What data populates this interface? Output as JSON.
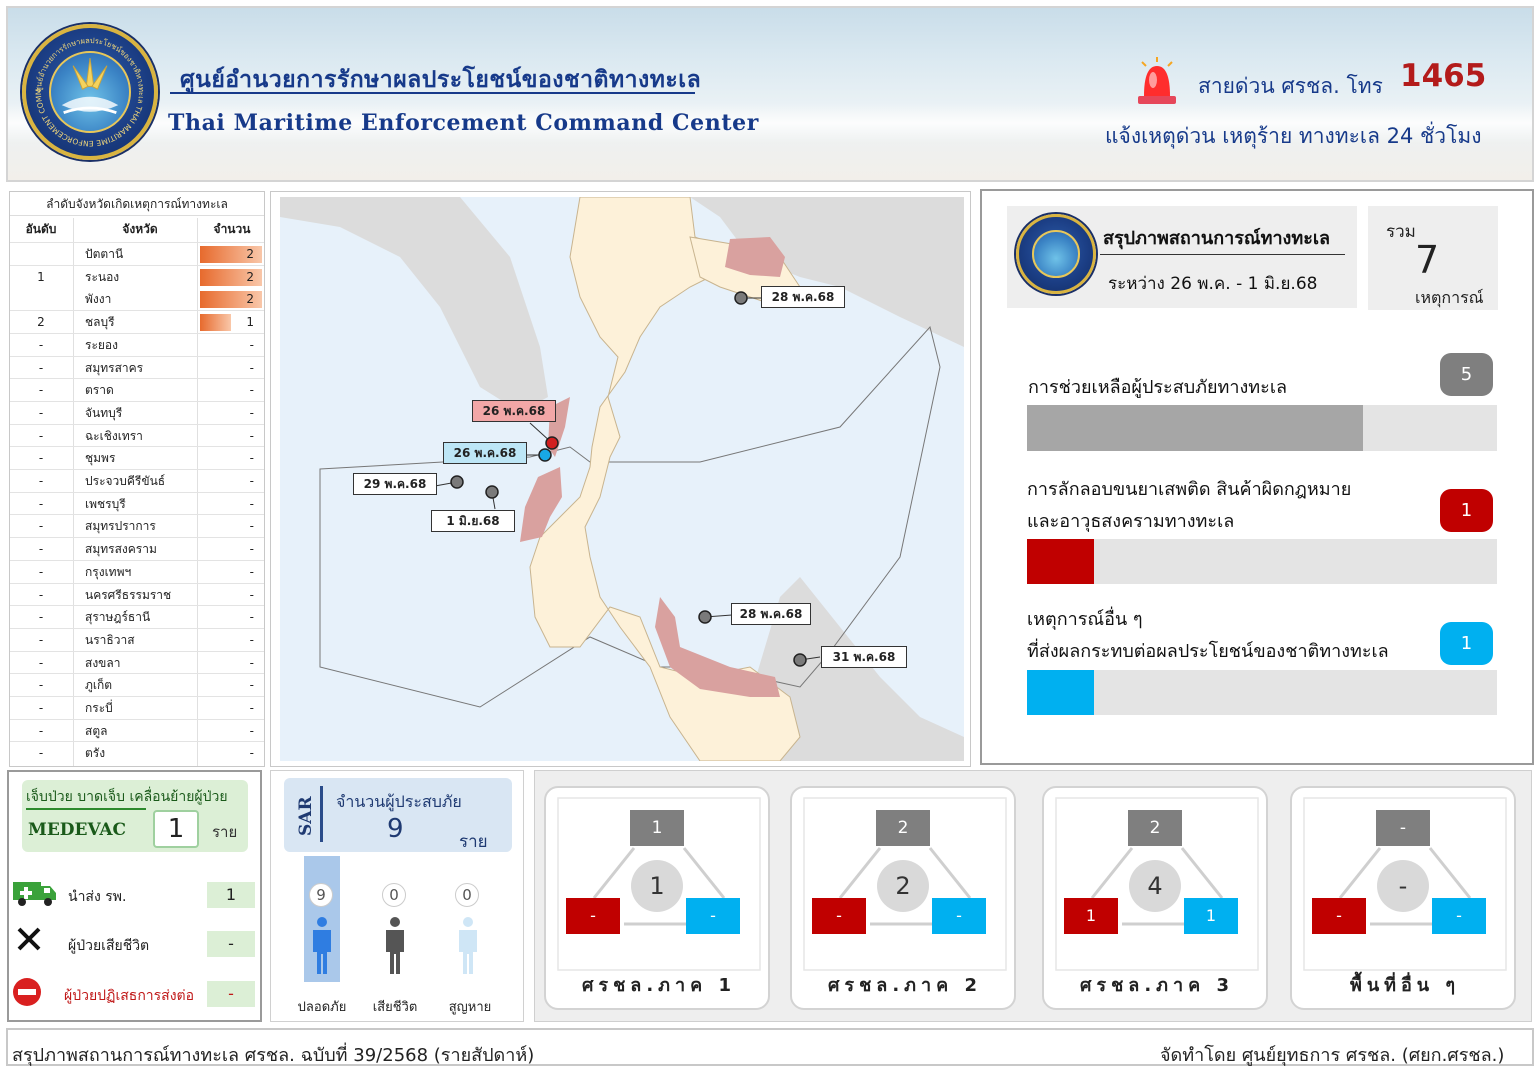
{
  "header": {
    "title_th": "ศูนย์อำนวยการรักษาผลประโยชน์ของชาติทางทะเล",
    "title_en": "Thai Maritime Enforcement Command Center",
    "logo_text": "ศูนย์อำนวยการรักษาผลประโยชน์ของชาติทางทะเล THAI MARITIME ENFORCEMENT COMMAND CENTER",
    "hotline_label": "สายด่วน ศรชล. โทร",
    "hotline_number": "1465",
    "hotline_sub": "แจ้งเหตุด่วน เหตุร้าย ทางทะเล 24 ชั่วโมง"
  },
  "ranking": {
    "title": "ลำดับจังหวัดเกิดเหตุการณ์ทางทะเล",
    "col_rank": "อันดับ",
    "col_province": "จังหวัด",
    "col_count": "จำนวน",
    "max_count": 2,
    "rows": [
      {
        "rank": "",
        "province": "ปัตตานี",
        "count": "2",
        "bar": 2
      },
      {
        "rank": "1",
        "province": "ระนอง",
        "count": "2",
        "bar": 2
      },
      {
        "rank": "",
        "province": "พังงา",
        "count": "2",
        "bar": 2
      },
      {
        "rank": "2",
        "province": "ชลบุรี",
        "count": "1",
        "bar": 1
      },
      {
        "rank": "-",
        "province": "ระยอง",
        "count": "-",
        "bar": 0
      },
      {
        "rank": "-",
        "province": "สมุทรสาคร",
        "count": "-",
        "bar": 0
      },
      {
        "rank": "-",
        "province": "ตราด",
        "count": "-",
        "bar": 0
      },
      {
        "rank": "-",
        "province": "จันทบุรี",
        "count": "-",
        "bar": 0
      },
      {
        "rank": "-",
        "province": "ฉะเชิงเทรา",
        "count": "-",
        "bar": 0
      },
      {
        "rank": "-",
        "province": "ชุมพร",
        "count": "-",
        "bar": 0
      },
      {
        "rank": "-",
        "province": "ประจวบคีรีขันธ์",
        "count": "-",
        "bar": 0
      },
      {
        "rank": "-",
        "province": "เพชรบุรี",
        "count": "-",
        "bar": 0
      },
      {
        "rank": "-",
        "province": "สมุทรปราการ",
        "count": "-",
        "bar": 0
      },
      {
        "rank": "-",
        "province": "สมุทรสงคราม",
        "count": "-",
        "bar": 0
      },
      {
        "rank": "-",
        "province": "กรุงเทพฯ",
        "count": "-",
        "bar": 0
      },
      {
        "rank": "-",
        "province": "นครศรีธรรมราช",
        "count": "-",
        "bar": 0
      },
      {
        "rank": "-",
        "province": "สุราษฎร์ธานี",
        "count": "-",
        "bar": 0
      },
      {
        "rank": "-",
        "province": "นราธิวาส",
        "count": "-",
        "bar": 0
      },
      {
        "rank": "-",
        "province": "สงขลา",
        "count": "-",
        "bar": 0
      },
      {
        "rank": "-",
        "province": "ภูเก็ต",
        "count": "-",
        "bar": 0
      },
      {
        "rank": "-",
        "province": "กระบี่",
        "count": "-",
        "bar": 0
      },
      {
        "rank": "-",
        "province": "สตูล",
        "count": "-",
        "bar": 0
      },
      {
        "rank": "-",
        "province": "ตรัง",
        "count": "-",
        "bar": 0
      }
    ]
  },
  "map": {
    "labels": [
      {
        "text": "28 พ.ค.68",
        "kind": "normal"
      },
      {
        "text": "26 พ.ค.68",
        "kind": "red"
      },
      {
        "text": "26 พ.ค.68",
        "kind": "blue"
      },
      {
        "text": "29 พ.ค.68",
        "kind": "normal"
      },
      {
        "text": "1 มิ.ย.68",
        "kind": "normal"
      },
      {
        "text": "28 พ.ค.68",
        "kind": "normal"
      },
      {
        "text": "31 พ.ค.68",
        "kind": "normal"
      }
    ]
  },
  "summary": {
    "title": "สรุปภาพสถานการณ์ทางทะเล",
    "range": "ระหว่าง  26 พ.ค. - 1 มิ.ย.68",
    "total_label": "รวม",
    "total_value": "7",
    "total_unit": "เหตุการณ์",
    "total_events": 7,
    "categories": [
      {
        "line1": "การช่วยเหลือผู้ประสบภัยทางทะเล",
        "line2": "",
        "value": "5",
        "count": 5,
        "color": "#7f7f7f",
        "bar_color": "#a6a6a6"
      },
      {
        "line1": "การลักลอบขนยาเสพติด สินค้าผิดกฎหมาย",
        "line2": "และอาวุธสงครามทางทะเล",
        "value": "1",
        "count": 1,
        "color": "#c00000",
        "bar_color": "#c00000"
      },
      {
        "line1": "เหตุการณ์อื่น ๆ",
        "line2": "ที่ส่งผลกระทบต่อผลประโยชน์ของชาติทางทะเล",
        "value": "1",
        "count": 1,
        "color": "#00b0f0",
        "bar_color": "#00b0f0"
      }
    ]
  },
  "medevac": {
    "title": "เจ็บป่วย บาดเจ็บ เคลื่อนย้ายผู้ป่วย",
    "code": "MEDEVAC",
    "count": "1",
    "unit": "ราย",
    "rows": [
      {
        "label": "นำส่ง รพ.",
        "value": "1",
        "icon": "ambulance-icon"
      },
      {
        "label": "ผู้ป่วยเสียชีวิต",
        "value": "-",
        "icon": "cross-icon"
      },
      {
        "label": "ผู้ป่วยปฏิเสธการส่งต่อ",
        "value": "-",
        "icon": "no-entry-icon"
      }
    ]
  },
  "sar": {
    "tag": "SAR",
    "title": "จำนวนผู้ประสบภัย",
    "total": "9",
    "unit": "ราย",
    "columns": [
      {
        "label": "ปลอดภัย",
        "value": "9"
      },
      {
        "label": "เสียชีวิต",
        "value": "0"
      },
      {
        "label": "สูญหาย",
        "value": "0"
      }
    ]
  },
  "regions": [
    {
      "name": "ศรชล.ภาค 1",
      "top": "1",
      "left": "-",
      "right": "-",
      "center": "1"
    },
    {
      "name": "ศรชล.ภาค 2",
      "top": "2",
      "left": "-",
      "right": "-",
      "center": "2"
    },
    {
      "name": "ศรชล.ภาค 3",
      "top": "2",
      "left": "1",
      "right": "1",
      "center": "4"
    },
    {
      "name": "พื้นที่อื่น ๆ",
      "top": "-",
      "left": "-",
      "right": "-",
      "center": "-"
    }
  ],
  "footer": {
    "left": "สรุปภาพสถานการณ์ทางทะเล ศรชล. ฉบับที่ 39/2568 (รายสัปดาห์)",
    "right": "จัดทำโดย ศูนย์ยุทธการ ศรชล. (ศยก.ศรชล.)"
  }
}
